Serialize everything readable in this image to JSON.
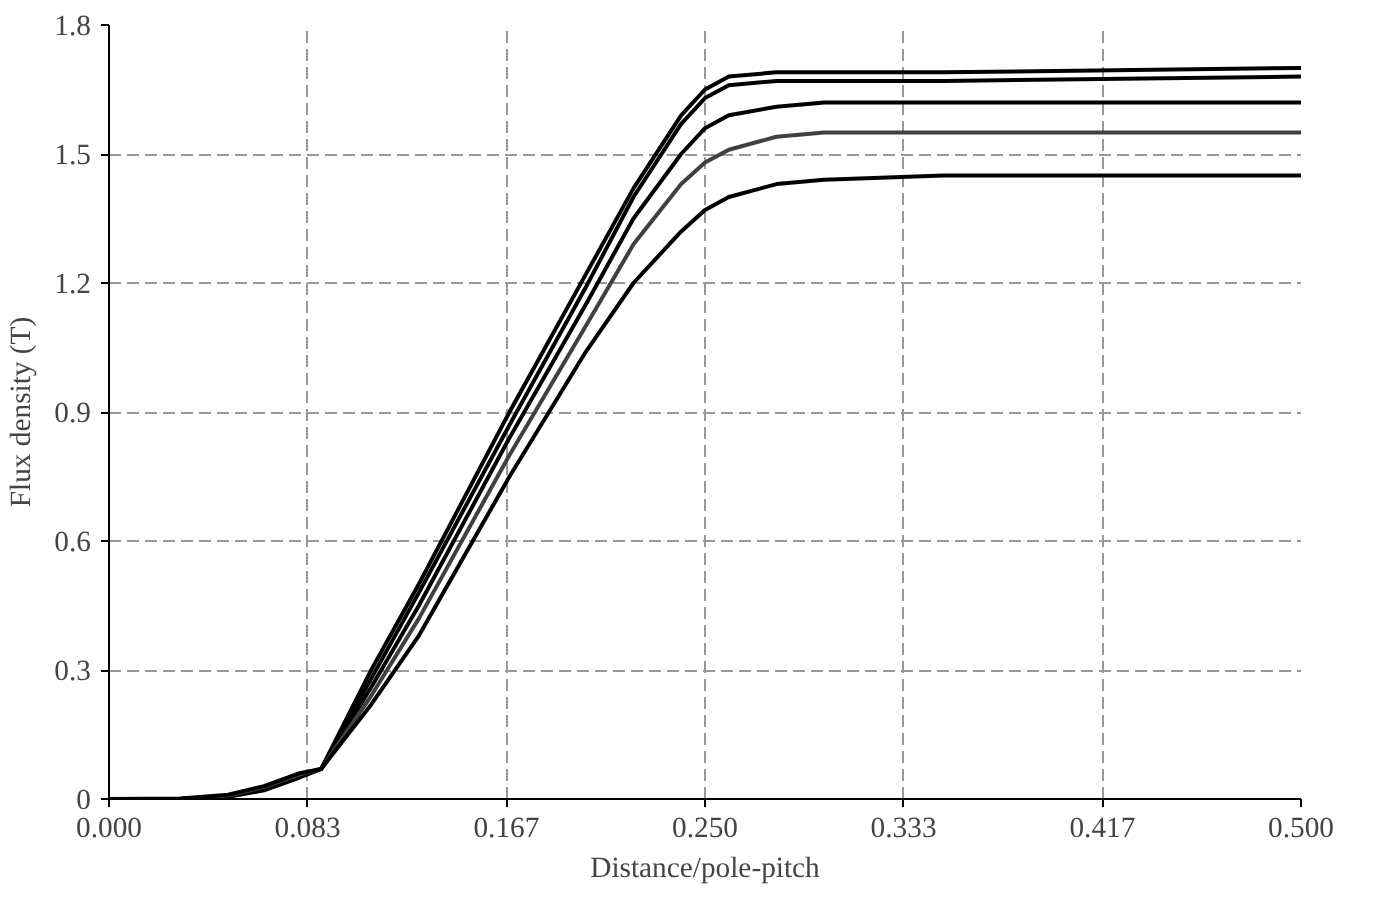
{
  "chart_data": {
    "type": "line",
    "xlabel": "Distance/pole-pitch",
    "ylabel": "Flux density (T)",
    "x": [
      0,
      0.03,
      0.05,
      0.065,
      0.08,
      0.089,
      0.11,
      0.13,
      0.168,
      0.2,
      0.22,
      0.24,
      0.25,
      0.26,
      0.28,
      0.3,
      0.35,
      0.5
    ],
    "series": [
      {
        "color": "#000000",
        "values": [
          0,
          0,
          0.005,
          0.02,
          0.05,
          0.07,
          0.3,
          0.5,
          0.9,
          1.22,
          1.42,
          1.59,
          1.65,
          1.68,
          1.69,
          1.69,
          1.69,
          1.7
        ]
      },
      {
        "color": "#000000",
        "values": [
          0,
          0,
          0.006,
          0.022,
          0.052,
          0.07,
          0.28,
          0.48,
          0.87,
          1.19,
          1.4,
          1.57,
          1.63,
          1.66,
          1.67,
          1.67,
          1.67,
          1.68
        ]
      },
      {
        "color": "#000000",
        "values": [
          0,
          0,
          0.007,
          0.025,
          0.055,
          0.07,
          0.26,
          0.45,
          0.84,
          1.15,
          1.35,
          1.5,
          1.56,
          1.59,
          1.61,
          1.62,
          1.62,
          1.62
        ]
      },
      {
        "color": "#404040",
        "values": [
          0,
          0,
          0.008,
          0.028,
          0.057,
          0.07,
          0.24,
          0.42,
          0.8,
          1.1,
          1.29,
          1.43,
          1.48,
          1.51,
          1.54,
          1.55,
          1.55,
          1.55
        ]
      },
      {
        "color": "#000000",
        "values": [
          0,
          0.001,
          0.01,
          0.03,
          0.06,
          0.07,
          0.22,
          0.38,
          0.75,
          1.04,
          1.2,
          1.32,
          1.37,
          1.4,
          1.43,
          1.44,
          1.45,
          1.45
        ]
      }
    ],
    "xlim": [
      0,
      0.5
    ],
    "ylim": [
      0,
      1.8
    ],
    "xticks": [
      {
        "value": 0,
        "label": "0.000"
      },
      {
        "value": 0.0833,
        "label": "0.083"
      },
      {
        "value": 0.1667,
        "label": "0.167"
      },
      {
        "value": 0.25,
        "label": "0.250"
      },
      {
        "value": 0.3333,
        "label": "0.333"
      },
      {
        "value": 0.4167,
        "label": "0.417"
      },
      {
        "value": 0.5,
        "label": "0.500"
      }
    ],
    "yticks": [
      0,
      0.3,
      0.6,
      0.9,
      1.2,
      1.5,
      1.8
    ],
    "grid": true,
    "line_style": "solid",
    "marker": "none"
  }
}
